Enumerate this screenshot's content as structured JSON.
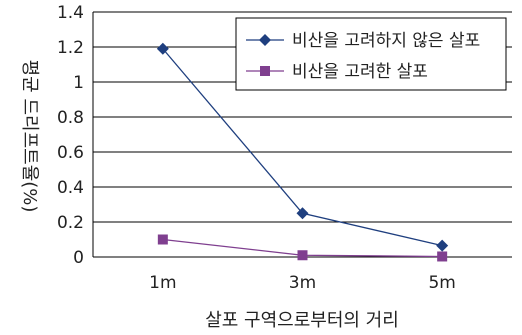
{
  "chart_data": {
    "type": "line",
    "categories": [
      "1m",
      "3m",
      "5m"
    ],
    "series": [
      {
        "name": "비산을 고려하지 않은 살포",
        "values": [
          1.19,
          0.25,
          0.065
        ],
        "color": "#1f3f7f",
        "marker": "diamond"
      },
      {
        "name": "비산을 고려한 살포",
        "values": [
          0.1,
          0.01,
          0.003
        ],
        "color": "#7f3f8f",
        "marker": "square"
      }
    ],
    "xlabel": "살포 구역으로부터의 거리",
    "ylabel": "평균 드리프트율(%)",
    "ylim": [
      0,
      1.4
    ],
    "yticks": [
      "0",
      "0.2",
      "0.4",
      "0.6",
      "0.8",
      "1",
      "1.2",
      "1.4"
    ],
    "grid": "horizontal",
    "legend": "top-right"
  }
}
